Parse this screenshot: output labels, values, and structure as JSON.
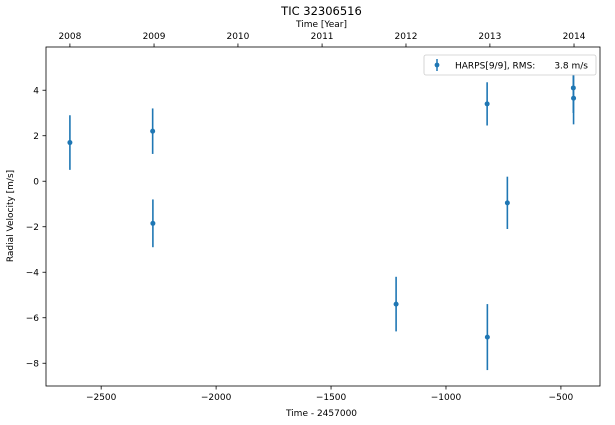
{
  "chart_data": {
    "type": "scatter",
    "title": "TIC 32306516",
    "xlabel": "Time - 2457000",
    "ylabel": "Radial Velocity [m/s]",
    "x2label": "Time [Year]",
    "xlim": [
      -2740,
      -330
    ],
    "ylim": [
      -9.0,
      5.9
    ],
    "xticks": [
      -2500,
      -2000,
      -1500,
      -1000,
      -500
    ],
    "xtick_labels": [
      "−2500",
      "−2000",
      "−1500",
      "−1000",
      "−500"
    ],
    "yticks": [
      4,
      2,
      0,
      -2,
      -4,
      -6,
      -8
    ],
    "ytick_labels": [
      "4",
      "2",
      "0",
      "−2",
      "−4",
      "−6",
      "−8"
    ],
    "x2ticks": [
      -2636,
      -2270,
      -1905,
      -1539,
      -1174,
      -809,
      -443
    ],
    "x2tick_labels": [
      "2008",
      "2009",
      "2010",
      "2011",
      "2012",
      "2013",
      "2014"
    ],
    "grid": false,
    "legend_position": "top-right",
    "color": "#1f77b4",
    "series": [
      {
        "name": "HARPS[9/9], RMS:",
        "rms_label": "3.8 m/s",
        "x": [
          -2636,
          -2276,
          -2275,
          -1217,
          -821,
          -820,
          -733,
          -446,
          -445
        ],
        "y": [
          1.7,
          2.2,
          -1.85,
          -5.4,
          3.4,
          -6.85,
          -0.95,
          4.1,
          3.65
        ],
        "yerr": [
          1.2,
          1.0,
          1.05,
          1.2,
          0.95,
          1.45,
          1.15,
          1.1,
          1.15
        ]
      }
    ]
  }
}
